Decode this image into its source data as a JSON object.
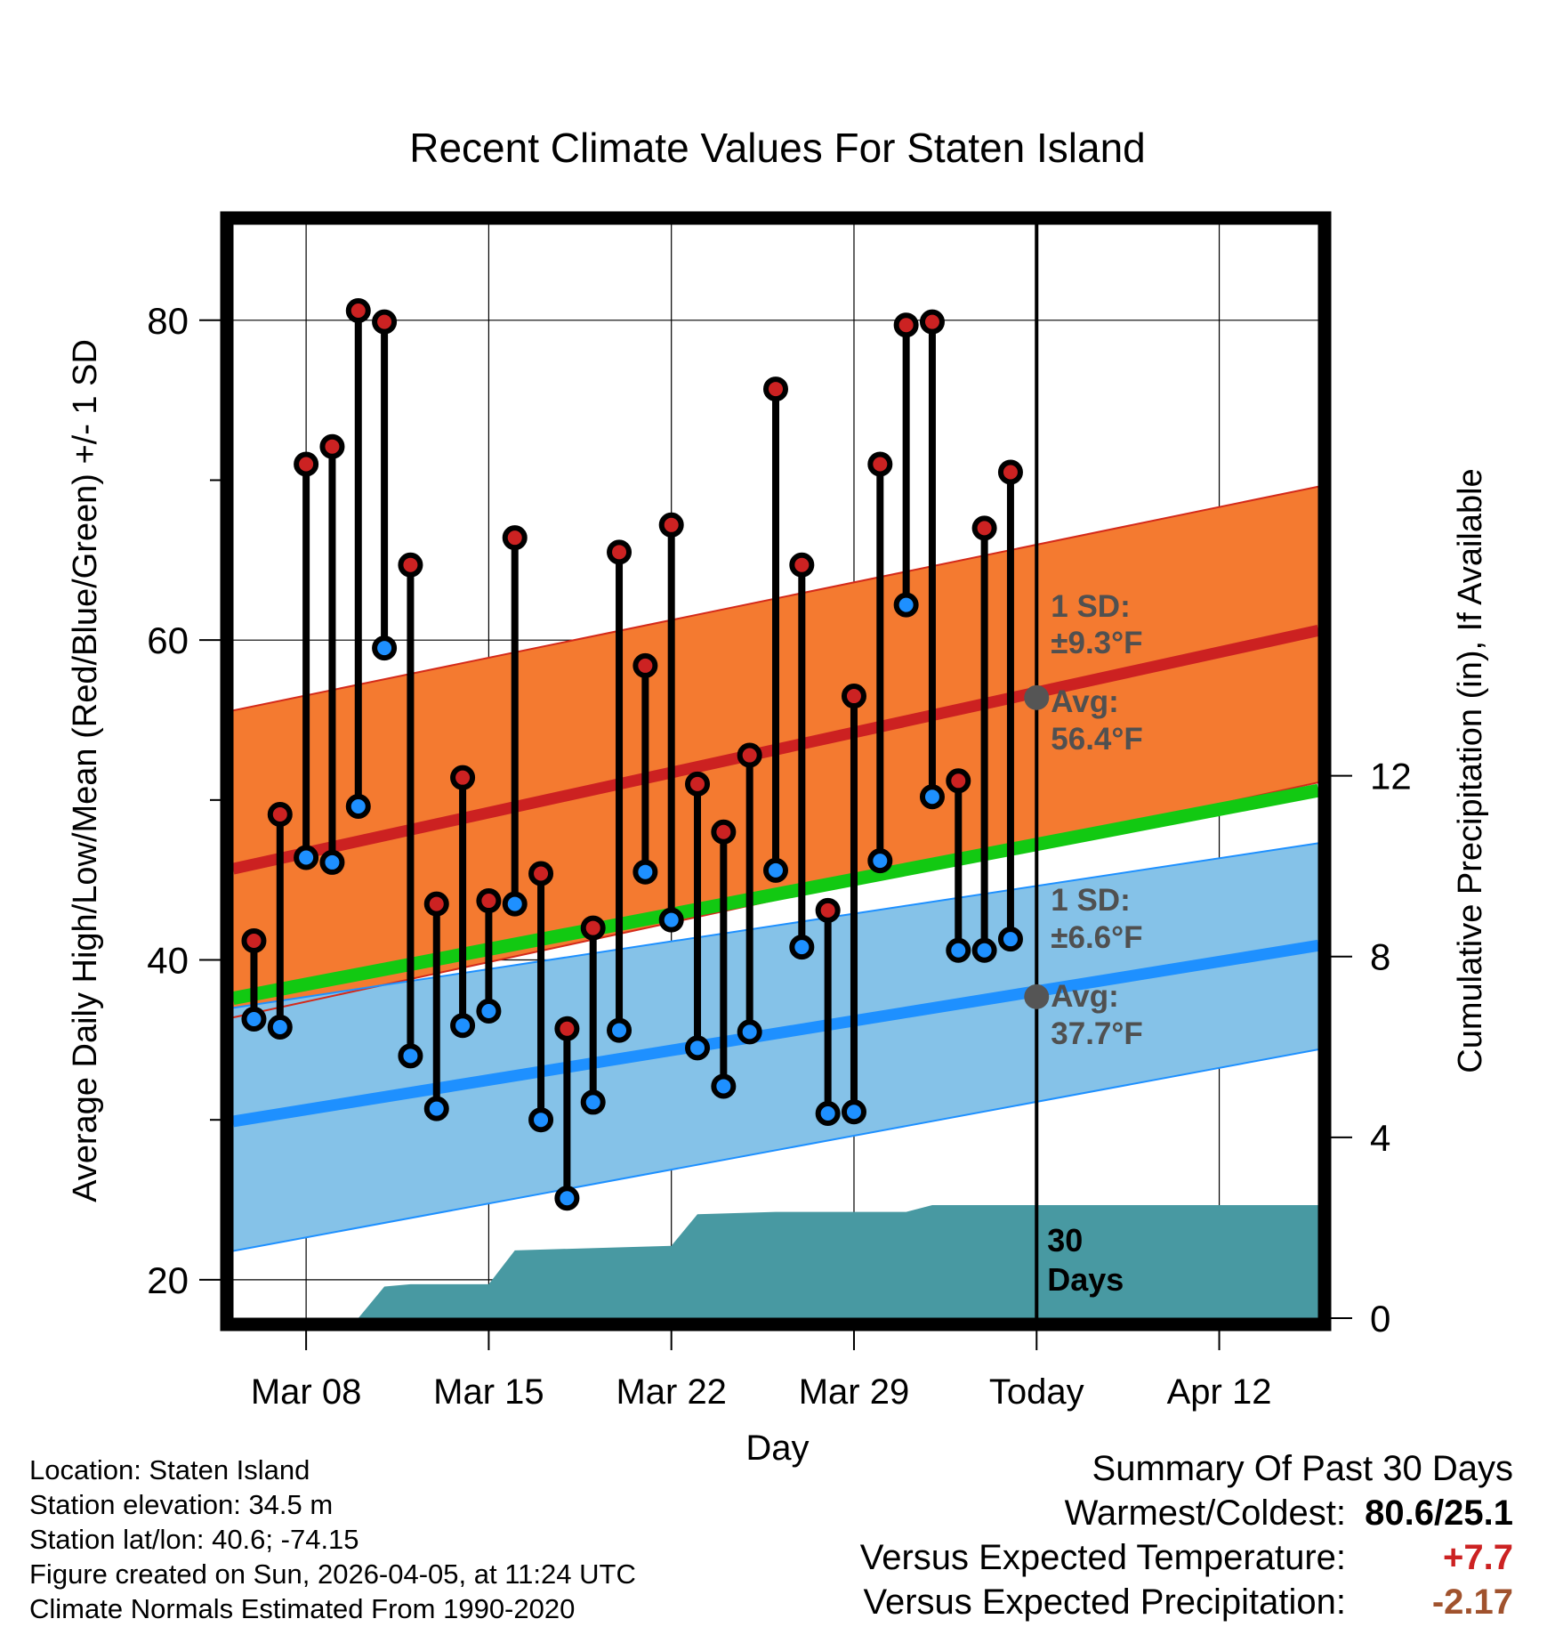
{
  "colors": {
    "high_band": "#f47a30",
    "low_band": "#85c2e8",
    "normal_high_line": "#cc2121",
    "normal_low_line": "#1e90ff",
    "normal_mean_line": "#12c912",
    "precip_fill": "#4899a2",
    "high_marker": "#cc2222",
    "low_marker": "#1e90ff",
    "today_marker": "#555555",
    "annotation_text": "#505050",
    "warm_value": "#cc2222",
    "precip_value": "#a0522d"
  },
  "chart_data": {
    "type": "line",
    "title": "Recent Climate Values For Staten Island",
    "xlabel": "Day",
    "ylabel": "Average Daily High/Low/Mean (Red/Blue/Green) +/- 1 SD",
    "y2label": "Cumulative Precipitation (in), If Available",
    "ylim": [
      17.6,
      86.0
    ],
    "y2lim": [
      0,
      24.2
    ],
    "xlim": [
      -2.8,
      38.8
    ],
    "yticks": [
      20,
      40,
      60,
      80
    ],
    "y2ticks": [
      0,
      4,
      8,
      12
    ],
    "xticks": [
      {
        "day": 0,
        "label": "Mar 08"
      },
      {
        "day": 7,
        "label": "Mar 15"
      },
      {
        "day": 14,
        "label": "Mar 22"
      },
      {
        "day": 21,
        "label": "Mar 29"
      },
      {
        "day": 28,
        "label": "Today"
      },
      {
        "day": 35,
        "label": "Apr 12"
      }
    ],
    "today_day": 28,
    "daily_observations": [
      {
        "day": -2,
        "high": 41.2,
        "low": 36.3
      },
      {
        "day": -1,
        "high": 49.1,
        "low": 35.8
      },
      {
        "day": 0,
        "high": 71.0,
        "low": 46.4
      },
      {
        "day": 1,
        "high": 72.1,
        "low": 46.1
      },
      {
        "day": 2,
        "high": 80.6,
        "low": 49.6
      },
      {
        "day": 3,
        "high": 79.9,
        "low": 59.5
      },
      {
        "day": 4,
        "high": 64.7,
        "low": 34.0
      },
      {
        "day": 5,
        "high": 43.5,
        "low": 30.7
      },
      {
        "day": 6,
        "high": 51.4,
        "low": 35.9
      },
      {
        "day": 7,
        "high": 43.7,
        "low": 36.8
      },
      {
        "day": 8,
        "high": 66.4,
        "low": 43.5
      },
      {
        "day": 9,
        "high": 45.4,
        "low": 30.0
      },
      {
        "day": 10,
        "high": 35.7,
        "low": 25.1
      },
      {
        "day": 11,
        "high": 42.0,
        "low": 31.1
      },
      {
        "day": 12,
        "high": 65.5,
        "low": 35.6
      },
      {
        "day": 13,
        "high": 58.4,
        "low": 45.5
      },
      {
        "day": 14,
        "high": 67.2,
        "low": 42.5
      },
      {
        "day": 15,
        "high": 51.0,
        "low": 34.5
      },
      {
        "day": 16,
        "high": 48.0,
        "low": 32.1
      },
      {
        "day": 17,
        "high": 52.8,
        "low": 35.5
      },
      {
        "day": 18,
        "high": 75.7,
        "low": 45.6
      },
      {
        "day": 19,
        "high": 64.7,
        "low": 40.8
      },
      {
        "day": 20,
        "high": 43.1,
        "low": 30.4
      },
      {
        "day": 21,
        "high": 56.5,
        "low": 30.5
      },
      {
        "day": 22,
        "high": 71.0,
        "low": 46.2
      },
      {
        "day": 23,
        "high": 79.7,
        "low": 62.2
      },
      {
        "day": 24,
        "high": 79.9,
        "low": 50.2
      },
      {
        "day": 25,
        "high": 51.2,
        "low": 40.6
      },
      {
        "day": 26,
        "high": 67.0,
        "low": 40.6
      },
      {
        "day": 27,
        "high": 70.5,
        "low": 41.3
      }
    ],
    "normal_high": {
      "start_day": -2.8,
      "start": 45.7,
      "end_day": 38.8,
      "end": 60.6,
      "today": 56.4
    },
    "normal_high_band": {
      "upper_start": 55.6,
      "upper_end": 69.6,
      "lower_start": 36.4,
      "lower_end": 51.1
    },
    "normal_low": {
      "start": 29.9,
      "end": 40.9,
      "today": 37.7
    },
    "normal_low_band": {
      "upper_start": 37.0,
      "upper_end": 47.3,
      "lower_start": 21.8,
      "lower_end": 34.4
    },
    "normal_mean": {
      "start": 37.6,
      "end": 50.6
    },
    "cumulative_precip": [
      {
        "day": 0,
        "value": 0
      },
      {
        "day": 2,
        "value": 0.0
      },
      {
        "day": 3,
        "value": 0.7
      },
      {
        "day": 4,
        "value": 0.75
      },
      {
        "day": 7,
        "value": 0.75
      },
      {
        "day": 8,
        "value": 1.5
      },
      {
        "day": 14,
        "value": 1.6
      },
      {
        "day": 15,
        "value": 2.3
      },
      {
        "day": 18,
        "value": 2.35
      },
      {
        "day": 23,
        "value": 2.35
      },
      {
        "day": 24,
        "value": 2.5
      },
      {
        "day": 28,
        "value": 2.5
      },
      {
        "day": 38.8,
        "value": 2.5
      }
    ],
    "annotations": {
      "high_sd_label": "1 SD:",
      "high_sd_value": "±9.3°F",
      "high_avg_label": "Avg:",
      "high_avg_value": "56.4°F",
      "low_sd_label": "1 SD:",
      "low_sd_value": "±6.6°F",
      "low_avg_label": "Avg:",
      "low_avg_value": "37.7°F",
      "days_count": "30",
      "days_label": "Days"
    }
  },
  "info": {
    "location": "Location: Staten Island",
    "elevation": "Station elevation: 34.5 m",
    "latlon": "Station lat/lon: 40.6; -74.15",
    "created": "Figure created on Sun, 2026-04-05, at 11:24 UTC",
    "normals": "Climate Normals Estimated From 1990-2020"
  },
  "summary": {
    "heading": "Summary Of Past 30 Days",
    "warmest_label": "Warmest/Coldest:",
    "warmest_value": "80.6/25.1",
    "temp_label": "Versus Expected Temperature:",
    "temp_value": "+7.7",
    "precip_label": "Versus Expected Precipitation:",
    "precip_value": "-2.17"
  }
}
